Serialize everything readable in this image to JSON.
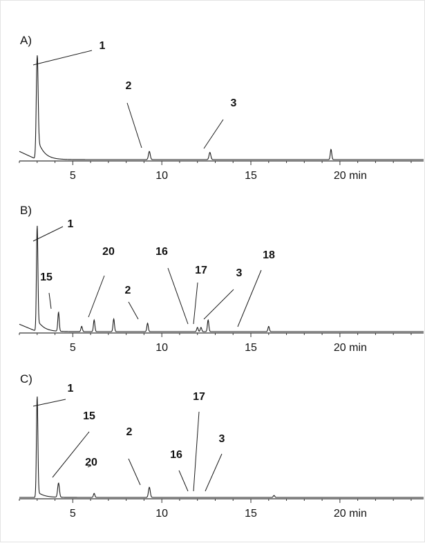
{
  "chart_data": [
    {
      "type": "line",
      "panel_label": "A)",
      "x_unit": "min",
      "xlim": [
        2.0,
        24.7
      ],
      "ylim": [
        0,
        1.0
      ],
      "x_ticks": [
        5,
        10,
        15,
        20
      ],
      "x_tick_labels": [
        "5",
        "10",
        "15",
        "20 min"
      ],
      "baseline": 0.03,
      "start": {
        "x": 2.0,
        "y": 0.11
      },
      "peaks": [
        {
          "x": 3.0,
          "h": 1.0,
          "w": 0.05,
          "tail": 0.22
        },
        {
          "x": 9.3,
          "h": 0.08,
          "w": 0.05
        },
        {
          "x": 12.7,
          "h": 0.07,
          "w": 0.05
        },
        {
          "x": 19.5,
          "h": 0.1,
          "w": 0.04
        }
      ],
      "annotations": [
        {
          "label": "1",
          "x": 3.0
        },
        {
          "label": "2",
          "x": 9.3
        },
        {
          "label": "3",
          "x": 12.7
        }
      ]
    },
    {
      "type": "line",
      "panel_label": "B)",
      "x_unit": "min",
      "xlim": [
        2.0,
        24.7
      ],
      "ylim": [
        0,
        1.0
      ],
      "x_ticks": [
        5,
        10,
        15,
        20
      ],
      "x_tick_labels": [
        "5",
        "10",
        "15",
        "20 min"
      ],
      "baseline": 0.03,
      "start": {
        "x": 2.0,
        "y": 0.1
      },
      "peaks": [
        {
          "x": 3.0,
          "h": 1.0,
          "w": 0.04,
          "tail": 0.12
        },
        {
          "x": 4.2,
          "h": 0.18,
          "w": 0.04
        },
        {
          "x": 5.5,
          "h": 0.05,
          "w": 0.04
        },
        {
          "x": 6.2,
          "h": 0.11,
          "w": 0.04
        },
        {
          "x": 7.3,
          "h": 0.12,
          "w": 0.04
        },
        {
          "x": 9.2,
          "h": 0.08,
          "w": 0.04
        },
        {
          "x": 12.0,
          "h": 0.04,
          "w": 0.04
        },
        {
          "x": 12.2,
          "h": 0.04,
          "w": 0.04
        },
        {
          "x": 12.6,
          "h": 0.11,
          "w": 0.04
        },
        {
          "x": 16.0,
          "h": 0.05,
          "w": 0.04
        }
      ],
      "annotations": [
        {
          "label": "1",
          "x": 3.0
        },
        {
          "label": "15",
          "x": 4.2
        },
        {
          "label": "20",
          "x": 6.2
        },
        {
          "label": "2",
          "x": 9.2
        },
        {
          "label": "16",
          "x": 12.0
        },
        {
          "label": "17",
          "x": 12.2
        },
        {
          "label": "3",
          "x": 12.6
        },
        {
          "label": "18",
          "x": 14.6
        }
      ]
    },
    {
      "type": "line",
      "panel_label": "C)",
      "x_unit": "min",
      "xlim": [
        2.0,
        24.7
      ],
      "ylim": [
        0,
        1.0
      ],
      "x_ticks": [
        5,
        10,
        15,
        20
      ],
      "x_tick_labels": [
        "5",
        "10",
        "15",
        "20 min"
      ],
      "baseline": 0.03,
      "start": {
        "x": 2.0,
        "y": 0.03
      },
      "peaks": [
        {
          "x": 3.0,
          "h": 1.0,
          "w": 0.04,
          "tail": 0.06
        },
        {
          "x": 4.2,
          "h": 0.14,
          "w": 0.05
        },
        {
          "x": 6.2,
          "h": 0.04,
          "w": 0.04
        },
        {
          "x": 9.3,
          "h": 0.1,
          "w": 0.05
        },
        {
          "x": 16.3,
          "h": 0.02,
          "w": 0.04
        }
      ],
      "annotations": [
        {
          "label": "1",
          "x": 3.0
        },
        {
          "label": "15",
          "x": 4.2
        },
        {
          "label": "20",
          "x": 6.2
        },
        {
          "label": "2",
          "x": 9.3
        },
        {
          "label": "16",
          "x": 12.0
        },
        {
          "label": "17",
          "x": 12.2
        },
        {
          "label": "3",
          "x": 12.7
        }
      ]
    }
  ]
}
